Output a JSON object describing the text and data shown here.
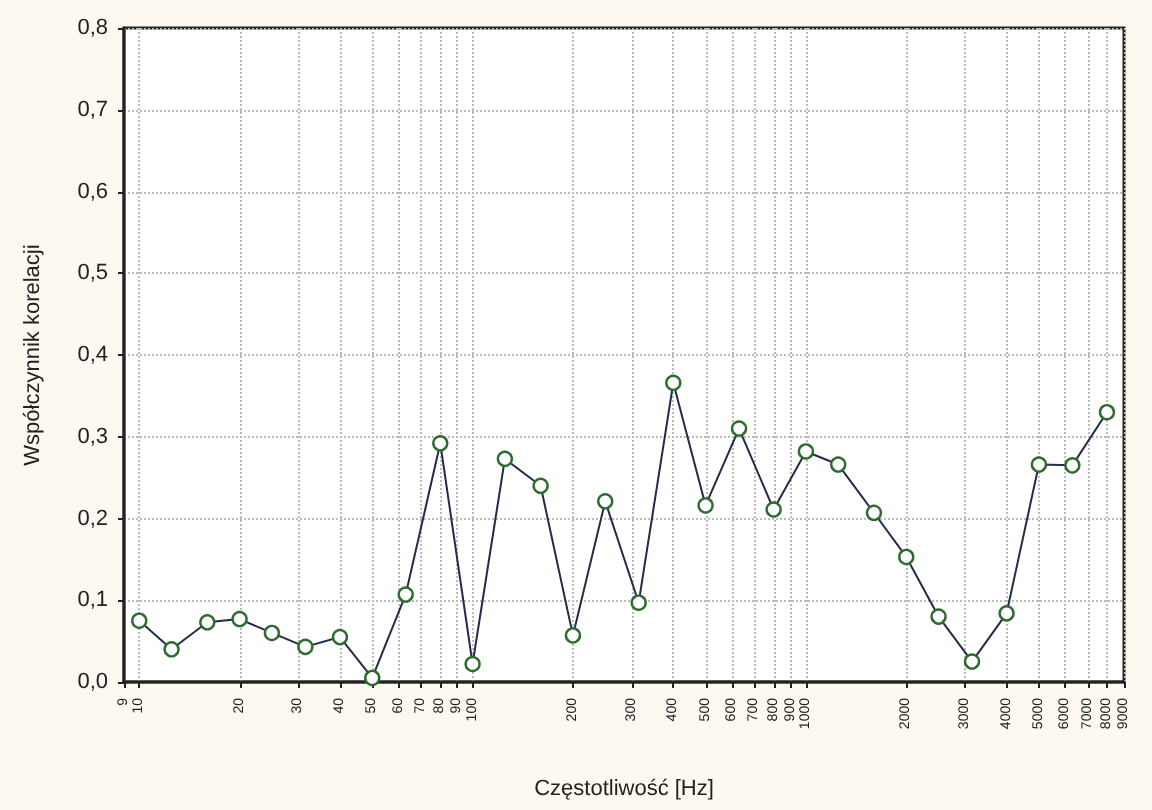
{
  "chart_data": {
    "type": "line",
    "xlabel": "Częstotliwość [Hz]",
    "ylabel": "Współczynnik korelacji",
    "x": [
      10,
      12.5,
      16,
      20,
      25,
      31.5,
      40,
      50,
      63,
      80,
      100,
      125,
      160,
      200,
      250,
      315,
      400,
      500,
      630,
      800,
      1000,
      1250,
      1600,
      2000,
      2500,
      3150,
      4000,
      5000,
      6300,
      8000
    ],
    "series": [
      {
        "color": "#262a4a",
        "values": [
          0.075,
          0.04,
          0.073,
          0.077,
          0.06,
          0.043,
          0.055,
          0.005,
          0.107,
          0.292,
          0.022,
          0.273,
          0.24,
          0.057,
          0.221,
          0.097,
          0.366,
          0.216,
          0.31,
          0.211,
          0.282,
          0.266,
          0.207,
          0.153,
          0.08,
          0.025,
          0.084,
          0.266,
          0.265,
          0.33
        ]
      }
    ],
    "log": "x",
    "xlim": [
      9,
      9000
    ],
    "xticks": [
      9,
      10,
      20,
      30,
      40,
      50,
      60,
      70,
      80,
      90,
      100,
      200,
      300,
      400,
      500,
      600,
      700,
      800,
      900,
      1000,
      2000,
      3000,
      4000,
      5000,
      6000,
      7000,
      8000,
      9000
    ],
    "ylim": [
      0,
      0.8
    ],
    "yticks": [
      {
        "value": 0,
        "label": "0,0"
      },
      {
        "value": 0.1,
        "label": "0,1"
      },
      {
        "value": 0.2,
        "label": "0,2"
      },
      {
        "value": 0.3,
        "label": "0,3"
      },
      {
        "value": 0.4,
        "label": "0,4"
      },
      {
        "value": 0.5,
        "label": "0,5"
      },
      {
        "value": 0.6,
        "label": "0,6"
      },
      {
        "value": 0.7,
        "label": "0,7"
      },
      {
        "value": 0.8,
        "label": "0,8"
      }
    ],
    "grid": true,
    "marker": "circle",
    "line_style": "solid"
  }
}
